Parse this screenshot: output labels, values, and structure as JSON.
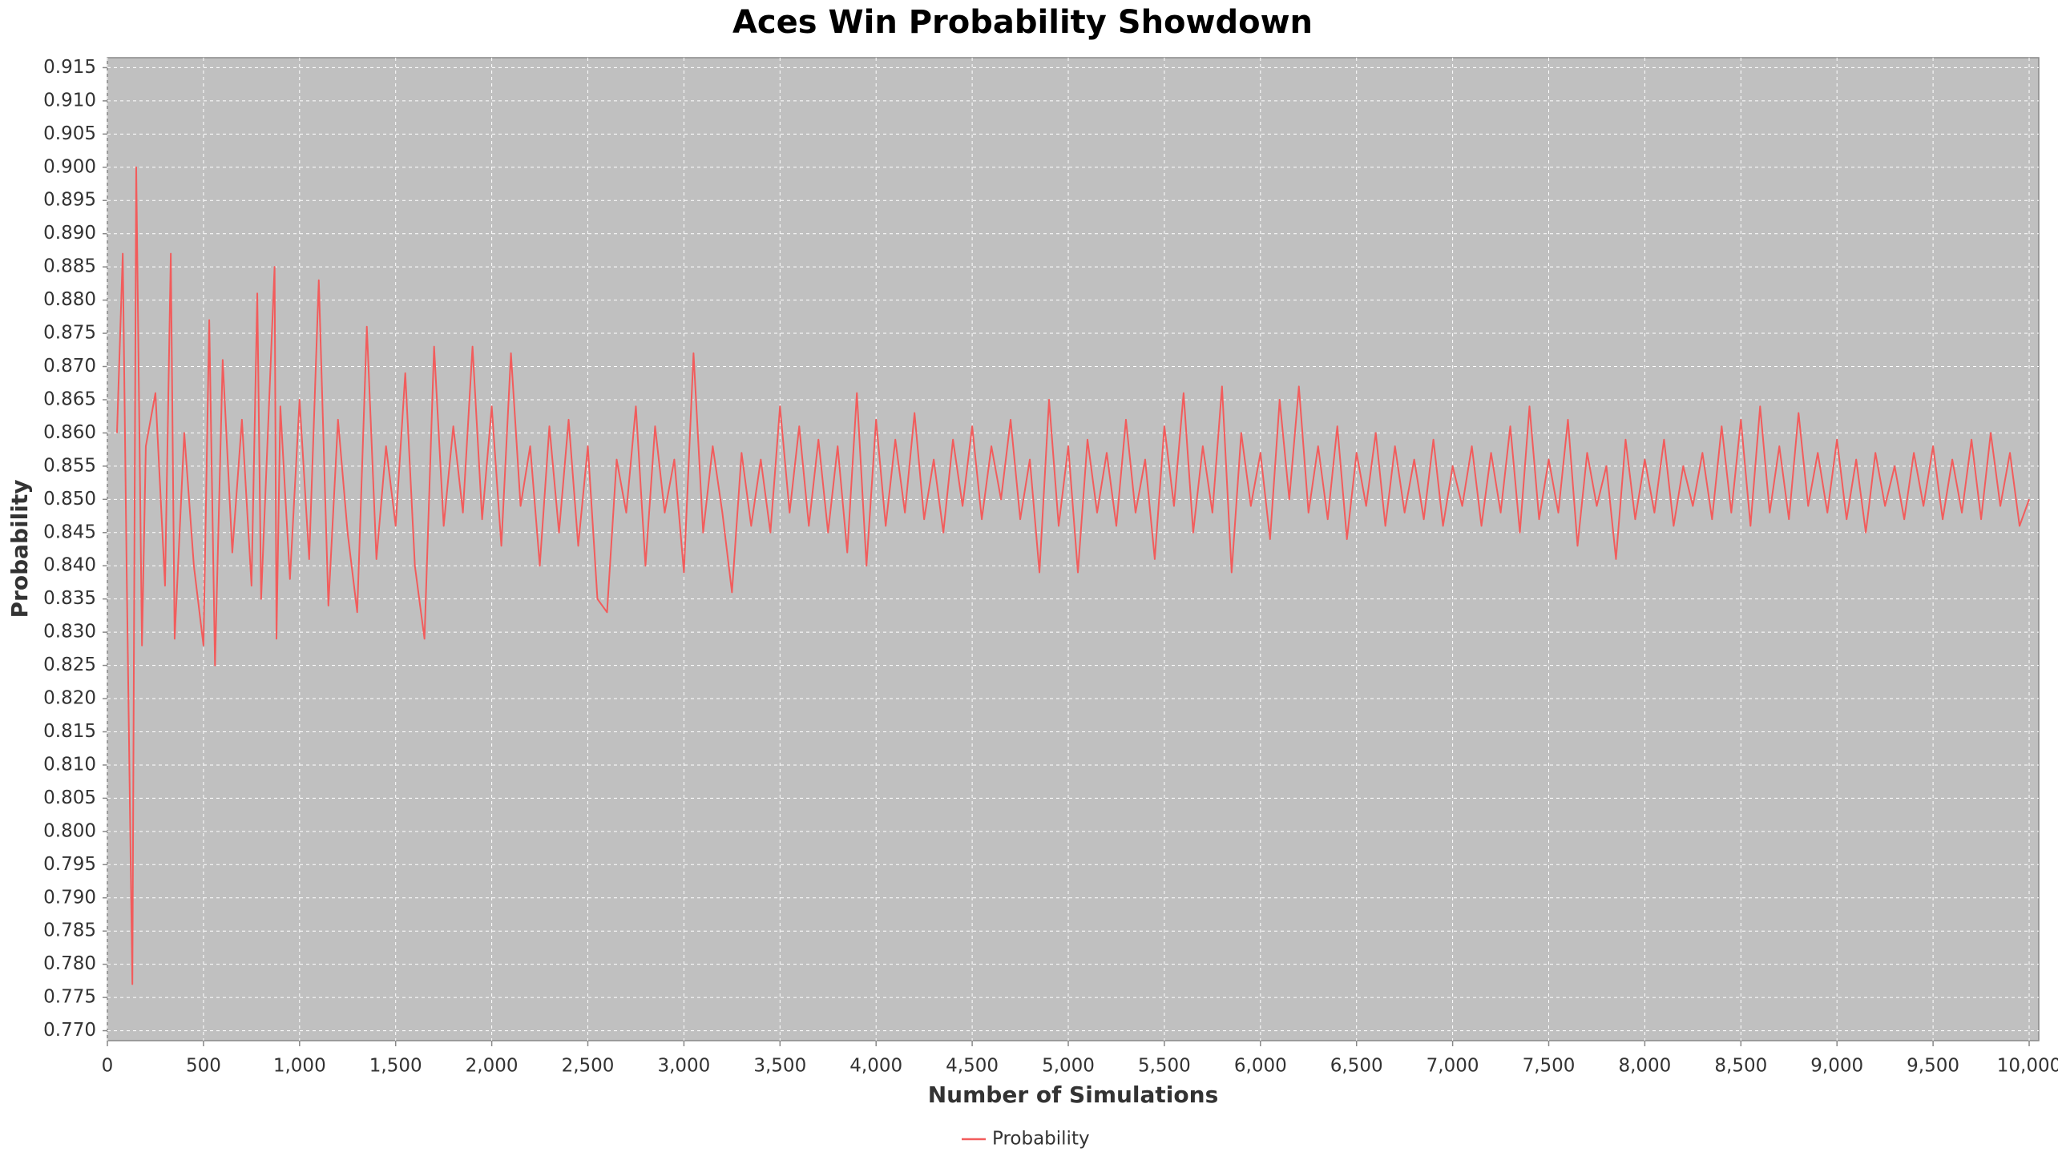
{
  "chart_data": {
    "type": "line",
    "title": "Aces Win Probability Showdown",
    "x_label": "Number of Simulations",
    "y_label": "Probability",
    "xlim": [
      0,
      10050
    ],
    "ylim": [
      0.7685,
      0.9165
    ],
    "xticks": [
      0,
      500,
      {
        "value": 1000,
        "label": "1,000"
      },
      {
        "value": 1500,
        "label": "1,500"
      },
      {
        "value": 2000,
        "label": "2,000"
      },
      {
        "value": 2500,
        "label": "2,500"
      },
      {
        "value": 3000,
        "label": "3,000"
      },
      {
        "value": 3500,
        "label": "3,500"
      },
      {
        "value": 4000,
        "label": "4,000"
      },
      {
        "value": 4500,
        "label": "4,500"
      },
      {
        "value": 5000,
        "label": "5,000"
      },
      {
        "value": 5500,
        "label": "5,500"
      },
      {
        "value": 6000,
        "label": "6,000"
      },
      {
        "value": 6500,
        "label": "6,500"
      },
      {
        "value": 7000,
        "label": "7,000"
      },
      {
        "value": 7500,
        "label": "7,500"
      },
      {
        "value": 8000,
        "label": "8,000"
      },
      {
        "value": 8500,
        "label": "8,500"
      },
      {
        "value": 9000,
        "label": "9,000"
      },
      {
        "value": 9500,
        "label": "9,500"
      },
      {
        "value": 10000,
        "label": "10,000"
      }
    ],
    "yticks": [
      {
        "value": 0.77,
        "label": "0.770"
      },
      {
        "value": 0.775,
        "label": "0.775"
      },
      {
        "value": 0.78,
        "label": "0.780"
      },
      {
        "value": 0.785,
        "label": "0.785"
      },
      {
        "value": 0.79,
        "label": "0.790"
      },
      {
        "value": 0.795,
        "label": "0.795"
      },
      {
        "value": 0.8,
        "label": "0.800"
      },
      {
        "value": 0.805,
        "label": "0.805"
      },
      {
        "value": 0.81,
        "label": "0.810"
      },
      {
        "value": 0.815,
        "label": "0.815"
      },
      {
        "value": 0.82,
        "label": "0.820"
      },
      {
        "value": 0.825,
        "label": "0.825"
      },
      {
        "value": 0.83,
        "label": "0.830"
      },
      {
        "value": 0.835,
        "label": "0.835"
      },
      {
        "value": 0.84,
        "label": "0.840"
      },
      {
        "value": 0.845,
        "label": "0.845"
      },
      {
        "value": 0.85,
        "label": "0.850"
      },
      {
        "value": 0.855,
        "label": "0.855"
      },
      {
        "value": 0.86,
        "label": "0.860"
      },
      {
        "value": 0.865,
        "label": "0.865"
      },
      {
        "value": 0.87,
        "label": "0.870"
      },
      {
        "value": 0.875,
        "label": "0.875"
      },
      {
        "value": 0.88,
        "label": "0.880"
      },
      {
        "value": 0.885,
        "label": "0.885"
      },
      {
        "value": 0.89,
        "label": "0.890"
      },
      {
        "value": 0.895,
        "label": "0.895"
      },
      {
        "value": 0.9,
        "label": "0.900"
      },
      {
        "value": 0.905,
        "label": "0.905"
      },
      {
        "value": 0.91,
        "label": "0.910"
      },
      {
        "value": 0.915,
        "label": "0.915"
      }
    ],
    "grid": true,
    "legend": "bottom",
    "x": [
      50,
      80,
      100,
      130,
      150,
      180,
      200,
      250,
      300,
      330,
      350,
      400,
      450,
      500,
      530,
      560,
      600,
      650,
      700,
      750,
      780,
      800,
      870,
      880,
      900,
      950,
      1000,
      1050,
      1100,
      1150,
      1200,
      1250,
      1300,
      1350,
      1400,
      1450,
      1500,
      1550,
      1600,
      1650,
      1700,
      1750,
      1800,
      1850,
      1900,
      1950,
      2000,
      2050,
      2100,
      2150,
      2200,
      2250,
      2300,
      2350,
      2400,
      2450,
      2500,
      2550,
      2600,
      2650,
      2700,
      2750,
      2800,
      2850,
      2900,
      2950,
      3000,
      3050,
      3100,
      3150,
      3200,
      3250,
      3300,
      3350,
      3400,
      3450,
      3500,
      3550,
      3600,
      3650,
      3700,
      3750,
      3800,
      3850,
      3900,
      3950,
      4000,
      4050,
      4100,
      4150,
      4200,
      4250,
      4300,
      4350,
      4400,
      4450,
      4500,
      4550,
      4600,
      4650,
      4700,
      4750,
      4800,
      4850,
      4900,
      4950,
      5000,
      5050,
      5100,
      5150,
      5200,
      5250,
      5300,
      5350,
      5400,
      5450,
      5500,
      5550,
      5600,
      5650,
      5700,
      5750,
      5800,
      5850,
      5900,
      5950,
      6000,
      6050,
      6100,
      6150,
      6200,
      6250,
      6300,
      6350,
      6400,
      6450,
      6500,
      6550,
      6600,
      6650,
      6700,
      6750,
      6800,
      6850,
      6900,
      6950,
      7000,
      7050,
      7100,
      7150,
      7200,
      7250,
      7300,
      7350,
      7400,
      7450,
      7500,
      7550,
      7600,
      7650,
      7700,
      7750,
      7800,
      7850,
      7900,
      7950,
      8000,
      8050,
      8100,
      8150,
      8200,
      8250,
      8300,
      8350,
      8400,
      8450,
      8500,
      8550,
      8600,
      8650,
      8700,
      8750,
      8800,
      8850,
      8900,
      8950,
      9000,
      9050,
      9100,
      9150,
      9200,
      9250,
      9300,
      9350,
      9400,
      9450,
      9500,
      9550,
      9600,
      9650,
      9700,
      9750,
      9800,
      9850,
      9900,
      9950,
      10000
    ],
    "series": [
      {
        "name": "Probability",
        "color": "#f25c5c",
        "values": [
          0.86,
          0.887,
          0.84,
          0.777,
          0.9,
          0.828,
          0.858,
          0.866,
          0.837,
          0.887,
          0.829,
          0.86,
          0.84,
          0.828,
          0.877,
          0.825,
          0.871,
          0.842,
          0.862,
          0.837,
          0.881,
          0.835,
          0.885,
          0.829,
          0.864,
          0.838,
          0.865,
          0.841,
          0.883,
          0.834,
          0.862,
          0.845,
          0.833,
          0.876,
          0.841,
          0.858,
          0.846,
          0.869,
          0.84,
          0.829,
          0.873,
          0.846,
          0.861,
          0.848,
          0.873,
          0.847,
          0.864,
          0.843,
          0.872,
          0.849,
          0.858,
          0.84,
          0.861,
          0.845,
          0.862,
          0.843,
          0.858,
          0.835,
          0.833,
          0.856,
          0.848,
          0.864,
          0.84,
          0.861,
          0.848,
          0.856,
          0.839,
          0.872,
          0.845,
          0.858,
          0.848,
          0.836,
          0.857,
          0.846,
          0.856,
          0.845,
          0.864,
          0.848,
          0.861,
          0.846,
          0.859,
          0.845,
          0.858,
          0.842,
          0.866,
          0.84,
          0.862,
          0.846,
          0.859,
          0.848,
          0.863,
          0.847,
          0.856,
          0.845,
          0.859,
          0.849,
          0.861,
          0.847,
          0.858,
          0.85,
          0.862,
          0.847,
          0.856,
          0.839,
          0.865,
          0.846,
          0.858,
          0.839,
          0.859,
          0.848,
          0.857,
          0.846,
          0.862,
          0.848,
          0.856,
          0.841,
          0.861,
          0.849,
          0.866,
          0.845,
          0.858,
          0.848,
          0.867,
          0.839,
          0.86,
          0.849,
          0.857,
          0.844,
          0.865,
          0.85,
          0.867,
          0.848,
          0.858,
          0.847,
          0.861,
          0.844,
          0.857,
          0.849,
          0.86,
          0.846,
          0.858,
          0.848,
          0.856,
          0.847,
          0.859,
          0.846,
          0.855,
          0.849,
          0.858,
          0.846,
          0.857,
          0.848,
          0.861,
          0.845,
          0.864,
          0.847,
          0.856,
          0.848,
          0.862,
          0.843,
          0.857,
          0.849,
          0.855,
          0.841,
          0.859,
          0.847,
          0.856,
          0.848,
          0.859,
          0.846,
          0.855,
          0.849,
          0.857,
          0.847,
          0.861,
          0.848,
          0.862,
          0.846,
          0.864,
          0.848,
          0.858,
          0.847,
          0.863,
          0.849,
          0.857,
          0.848,
          0.859,
          0.847,
          0.856,
          0.845,
          0.857,
          0.849,
          0.855,
          0.847,
          0.857,
          0.849,
          0.858,
          0.847,
          0.856,
          0.848,
          0.859,
          0.847,
          0.86,
          0.849,
          0.857,
          0.846,
          0.85
        ]
      }
    ]
  }
}
